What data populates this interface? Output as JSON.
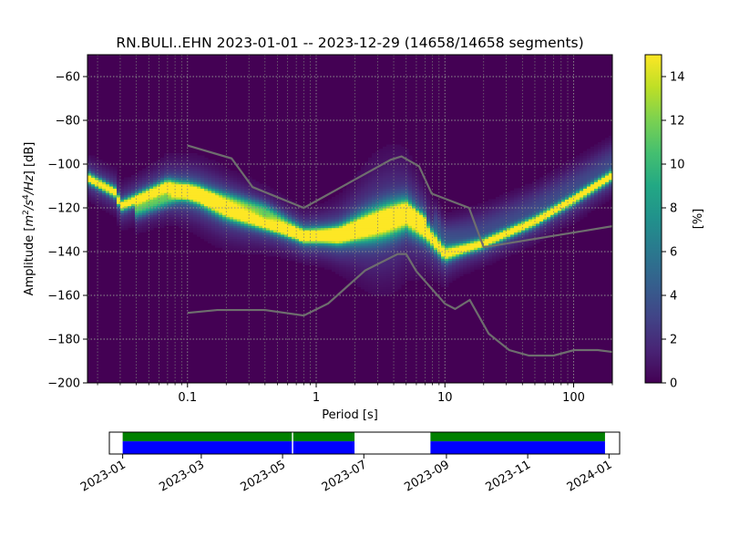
{
  "chart_data": [
    {
      "type": "heatmap",
      "title": "RN.BULI..EHN   2023-01-01 -- 2023-12-29  (14658/14658 segments)",
      "xlabel": "Period [s]",
      "ylabel_parts": [
        "Amplitude [",
        "m",
        "2",
        "/",
        "s",
        "4",
        "/",
        "Hz",
        "] [dB]"
      ],
      "x_scale": "log",
      "xlim": [
        0.0167,
        200
      ],
      "ylim": [
        -200,
        -50
      ],
      "x_ticks": [
        {
          "value": 0.1,
          "label": "0.1"
        },
        {
          "value": 1,
          "label": "1"
        },
        {
          "value": 10,
          "label": "10"
        },
        {
          "value": 100,
          "label": "100"
        }
      ],
      "y_ticks": [
        {
          "value": -60,
          "label": "−60"
        },
        {
          "value": -80,
          "label": "−80"
        },
        {
          "value": -100,
          "label": "−100"
        },
        {
          "value": -120,
          "label": "−120"
        },
        {
          "value": -140,
          "label": "−140"
        },
        {
          "value": -160,
          "label": "−160"
        },
        {
          "value": -180,
          "label": "−180"
        },
        {
          "value": -200,
          "label": "−200"
        }
      ],
      "grid": true,
      "colormap": "viridis",
      "colorbar": {
        "label": "[%]",
        "range": [
          0,
          15
        ],
        "ticks": [
          {
            "value": 0,
            "label": "0"
          },
          {
            "value": 2,
            "label": "2"
          },
          {
            "value": 4,
            "label": "4"
          },
          {
            "value": 6,
            "label": "6"
          },
          {
            "value": 8,
            "label": "8"
          },
          {
            "value": 10,
            "label": "10"
          },
          {
            "value": 12,
            "label": "12"
          },
          {
            "value": 14,
            "label": "14"
          }
        ]
      },
      "mode_curve": [
        {
          "period": 0.0167,
          "db": -106
        },
        {
          "period": 0.028,
          "db": -113
        },
        {
          "period": 0.03,
          "db": -119
        },
        {
          "period": 0.04,
          "db": -116
        },
        {
          "period": 0.07,
          "db": -110
        },
        {
          "period": 0.12,
          "db": -114
        },
        {
          "period": 0.2,
          "db": -121
        },
        {
          "period": 0.4,
          "db": -127
        },
        {
          "period": 0.8,
          "db": -133
        },
        {
          "period": 1.5,
          "db": -132
        },
        {
          "period": 3,
          "db": -127
        },
        {
          "period": 5,
          "db": -123
        },
        {
          "period": 7,
          "db": -130
        },
        {
          "period": 10,
          "db": -141
        },
        {
          "period": 20,
          "db": -136
        },
        {
          "period": 50,
          "db": -126
        },
        {
          "period": 100,
          "db": -116
        },
        {
          "period": 200,
          "db": -105
        }
      ],
      "secondary_curve": [
        {
          "period": 0.04,
          "db": -121
        },
        {
          "period": 0.07,
          "db": -116
        },
        {
          "period": 0.1,
          "db": -112
        },
        {
          "period": 0.2,
          "db": -116
        },
        {
          "period": 0.4,
          "db": -121
        },
        {
          "period": 0.8,
          "db": -132
        },
        {
          "period": 1.5,
          "db": -133
        },
        {
          "period": 3,
          "db": -126
        },
        {
          "period": 5,
          "db": -121
        },
        {
          "period": 7,
          "db": -126
        }
      ],
      "nhnm": [
        {
          "period": 0.1,
          "db": -91.5
        },
        {
          "period": 0.22,
          "db": -97.4
        },
        {
          "period": 0.32,
          "db": -110.5
        },
        {
          "period": 0.8,
          "db": -120
        },
        {
          "period": 3.8,
          "db": -98
        },
        {
          "period": 4.6,
          "db": -96.5
        },
        {
          "period": 6.3,
          "db": -101
        },
        {
          "period": 7.9,
          "db": -113.5
        },
        {
          "period": 15.4,
          "db": -120
        },
        {
          "period": 20,
          "db": -138
        },
        {
          "period": 354.8,
          "db": -126
        }
      ],
      "nlnm": [
        {
          "period": 0.1,
          "db": -168
        },
        {
          "period": 0.17,
          "db": -166.7
        },
        {
          "period": 0.4,
          "db": -166.7
        },
        {
          "period": 0.8,
          "db": -169.2
        },
        {
          "period": 1.24,
          "db": -163.7
        },
        {
          "period": 2.4,
          "db": -148.6
        },
        {
          "period": 4.3,
          "db": -141.1
        },
        {
          "period": 5,
          "db": -141.1
        },
        {
          "period": 6,
          "db": -149
        },
        {
          "period": 10,
          "db": -163.8
        },
        {
          "period": 12,
          "db": -166.2
        },
        {
          "period": 15.6,
          "db": -162.1
        },
        {
          "period": 21.9,
          "db": -177.5
        },
        {
          "period": 31.6,
          "db": -185
        },
        {
          "period": 45,
          "db": -187.5
        },
        {
          "period": 70,
          "db": -187.5
        },
        {
          "period": 101,
          "db": -185
        },
        {
          "period": 154,
          "db": -185
        },
        {
          "period": 328,
          "db": -187.5
        }
      ]
    },
    {
      "type": "bar",
      "xlabel": "",
      "x_scale": "date",
      "xlim": [
        "2022-12-22",
        "2024-01-09"
      ],
      "tick_labels": [
        {
          "date": "2023-01-01",
          "label": "2023-01"
        },
        {
          "date": "2023-03-01",
          "label": "2023-03"
        },
        {
          "date": "2023-05-01",
          "label": "2023-05"
        },
        {
          "date": "2023-07-01",
          "label": "2023-07"
        },
        {
          "date": "2023-09-01",
          "label": "2023-09"
        },
        {
          "date": "2023-11-01",
          "label": "2023-11"
        },
        {
          "date": "2024-01-01",
          "label": "2024-01"
        }
      ],
      "series": [
        {
          "color": "#008000",
          "intervals": [
            [
              "2023-01-01",
              "2023-05-08"
            ],
            [
              "2023-05-09",
              "2023-06-24"
            ],
            [
              "2023-08-20",
              "2023-12-29"
            ]
          ]
        },
        {
          "color": "#0000ff",
          "intervals": [
            [
              "2023-01-01",
              "2023-05-08"
            ],
            [
              "2023-05-09",
              "2023-06-24"
            ],
            [
              "2023-08-20",
              "2023-12-29"
            ]
          ]
        }
      ]
    }
  ]
}
